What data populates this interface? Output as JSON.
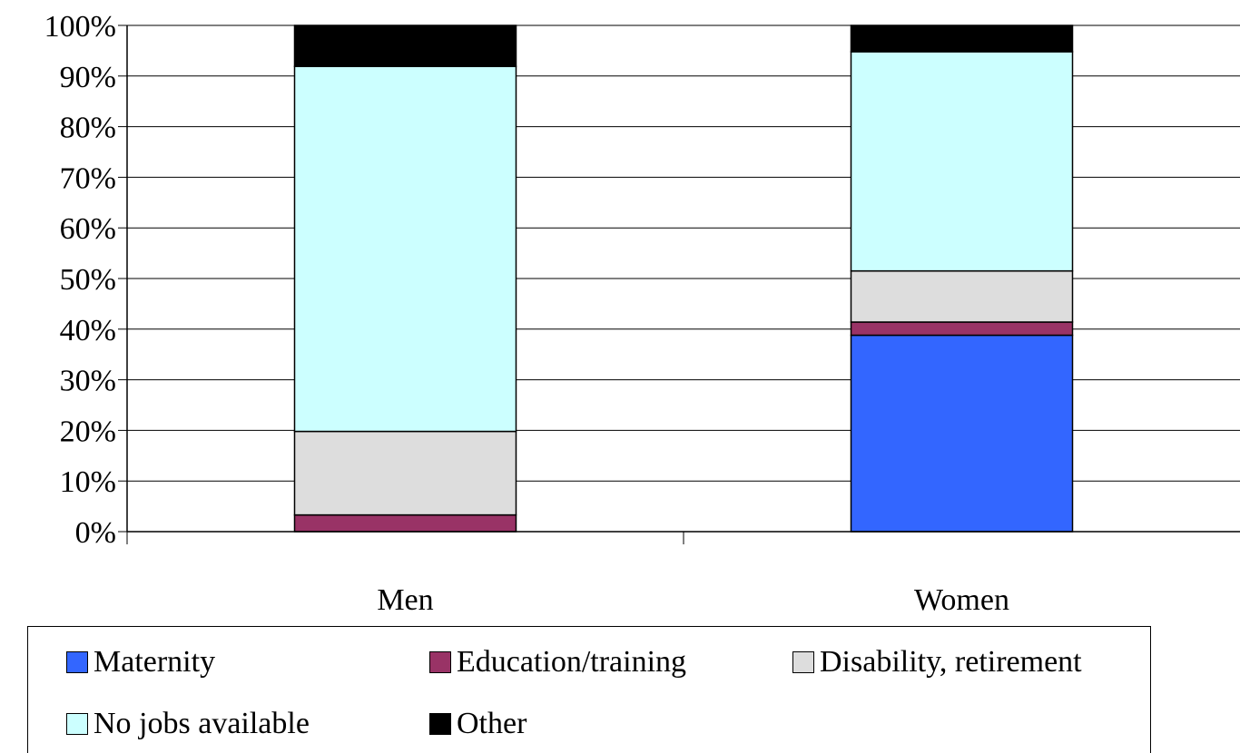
{
  "chart_data": {
    "type": "bar",
    "stacked": true,
    "categories": [
      "Men",
      "Women"
    ],
    "series": [
      {
        "name": "Maternity",
        "color": "#3366FF",
        "values": [
          0,
          38.8
        ]
      },
      {
        "name": "Education/training",
        "color": "#993366",
        "values": [
          3.3,
          2.6
        ]
      },
      {
        "name": "Disability, retirement",
        "color": "#DDDDDD",
        "values": [
          16.5,
          10.1
        ]
      },
      {
        "name": "No jobs available",
        "color": "#CCFFFF",
        "values": [
          72.1,
          43.3
        ]
      },
      {
        "name": "Other",
        "color": "#000000",
        "values": [
          8.1,
          5.2
        ]
      }
    ],
    "ylim": [
      0,
      100
    ],
    "yticks": [
      "0%",
      "10%",
      "20%",
      "30%",
      "40%",
      "50%",
      "60%",
      "70%",
      "80%",
      "90%",
      "100%"
    ],
    "grid": true,
    "legend_position": "bottom",
    "title": "",
    "xlabel": "",
    "ylabel": ""
  },
  "legend": [
    {
      "label": "Maternity",
      "color": "#3366FF"
    },
    {
      "label": "Education/training",
      "color": "#993366"
    },
    {
      "label": "Disability, retirement",
      "color": "#DDDDDD"
    },
    {
      "label": "No jobs available",
      "color": "#CCFFFF"
    },
    {
      "label": "Other",
      "color": "#000000"
    }
  ]
}
